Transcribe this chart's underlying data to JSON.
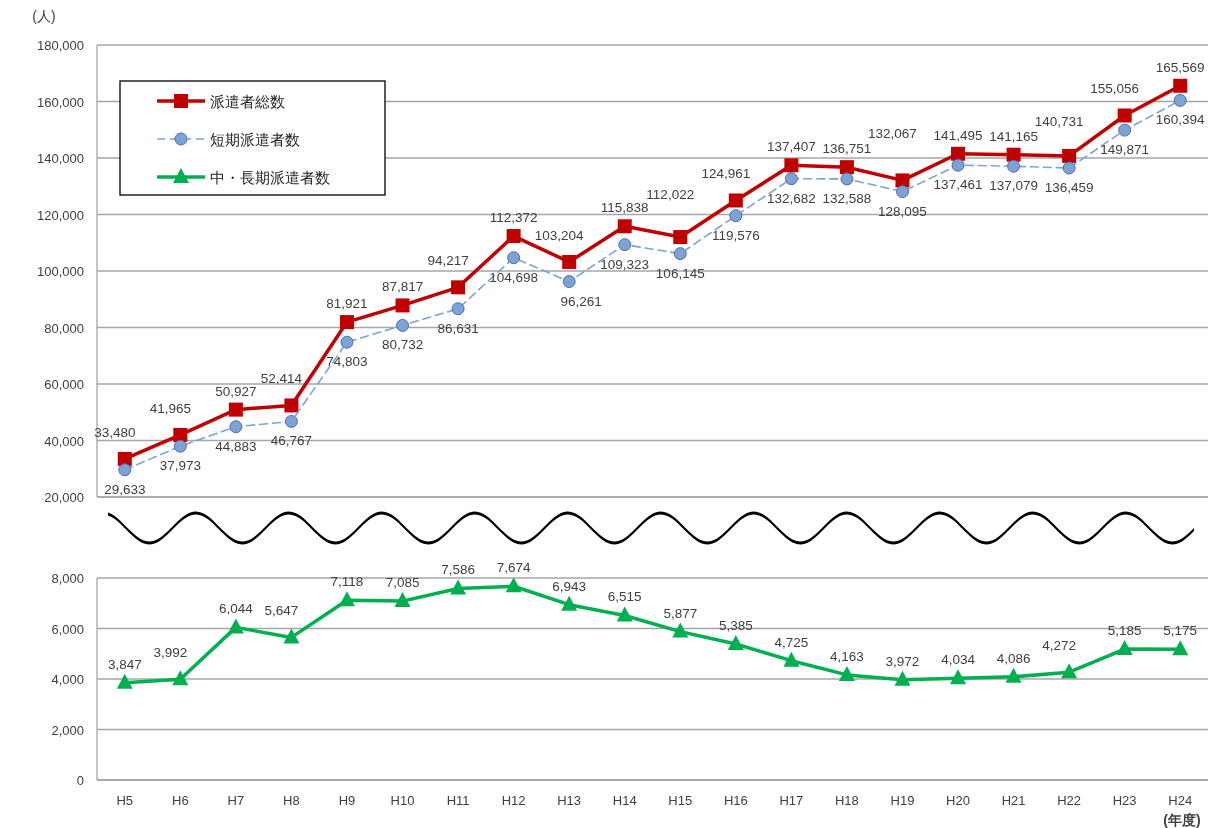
{
  "chart_data": [
    {
      "type": "line",
      "ylabel": "(人)",
      "categories": [
        null,
        null,
        null,
        null,
        null,
        null,
        null,
        null,
        null,
        null,
        null,
        null,
        null,
        null,
        null,
        null,
        null,
        null,
        null,
        null
      ],
      "ylim": [
        20000,
        180000
      ],
      "yticks": [
        {
          "value": 20000,
          "label": "20,000"
        },
        {
          "value": 40000,
          "label": "40,000"
        },
        {
          "value": 60000,
          "label": "60,000"
        },
        {
          "value": 80000,
          "label": "80,000"
        },
        {
          "value": 100000,
          "label": "100,000"
        },
        {
          "value": 120000,
          "label": "120,000"
        },
        {
          "value": 140000,
          "label": "140,000"
        },
        {
          "value": 160000,
          "label": "160,000"
        },
        {
          "value": 180000,
          "label": "180,000"
        }
      ],
      "tick_labels": "y",
      "grid": "y",
      "legend": "top left",
      "series": [
        {
          "name": "派遣者総数",
          "color": "#c00000",
          "marker": "square",
          "line_style": "solid",
          "values": [
            33480,
            41965,
            50927,
            52414,
            81921,
            87817,
            94217,
            112372,
            103204,
            115838,
            112022,
            124961,
            137407,
            136751,
            132067,
            141495,
            141165,
            140731,
            155056,
            165569
          ],
          "value_labels": [
            "33,480",
            "41,965",
            "50,927",
            "52,414",
            "81,921",
            "87,817",
            "94,217",
            "112,372",
            "103,204",
            "115,838",
            "112,022",
            "124,961",
            "137,407",
            "136,751",
            "132,067",
            "141,495",
            "141,165",
            "140,731",
            "155,056",
            "165,569"
          ]
        },
        {
          "name": "短期派遣者数",
          "color": "#7da2d6",
          "marker": "circle",
          "line_style": "dashed",
          "values": [
            29633,
            37973,
            44883,
            46767,
            74803,
            80732,
            86631,
            104698,
            96261,
            109323,
            106145,
            119576,
            132682,
            132588,
            128095,
            137461,
            137079,
            136459,
            149871,
            160394
          ],
          "value_labels": [
            "29,633",
            "37,973",
            "44,883",
            "46,767",
            "74,803",
            "80,732",
            "86,631",
            "104,698",
            "96,261",
            "109,323",
            "106,145",
            "119,576",
            "132,682",
            "132,588",
            "128,095",
            "137,461",
            "137,079",
            "136,459",
            "149,871",
            "160,394"
          ]
        }
      ]
    },
    {
      "type": "line",
      "xlabel": "(年度)",
      "categories": [
        "H5",
        "H6",
        "H7",
        "H8",
        "H9",
        "H10",
        "H11",
        "H12",
        "H13",
        "H14",
        "H15",
        "H16",
        "H17",
        "H18",
        "H19",
        "H20",
        "H21",
        "H22",
        "H23",
        "H24"
      ],
      "ylim": [
        0,
        8000
      ],
      "yticks": [
        0,
        {
          "value": 2000,
          "label": "2,000"
        },
        {
          "value": 4000,
          "label": "4,000"
        },
        {
          "value": 6000,
          "label": "6,000"
        },
        {
          "value": 8000,
          "label": "8,000"
        }
      ],
      "grid": "y",
      "legend": "top left",
      "series": [
        {
          "name": "中・長期派遣者数",
          "color": "#00b050",
          "marker": "triangle",
          "line_style": "solid",
          "values": [
            3847,
            3992,
            6044,
            5647,
            7118,
            7085,
            7586,
            7674,
            6943,
            6515,
            5877,
            5385,
            4725,
            4163,
            3972,
            4034,
            4086,
            4272,
            5185,
            5175
          ],
          "value_labels": [
            "3,847",
            "3,992",
            "6,044",
            "5,647",
            "7,118",
            "7,085",
            "7,586",
            "7,674",
            "6,943",
            "6,515",
            "5,877",
            "5,385",
            "4,725",
            "4,163",
            "3,972",
            "4,034",
            "4,086",
            "4,272",
            "5,185",
            "5,175"
          ]
        }
      ]
    }
  ]
}
